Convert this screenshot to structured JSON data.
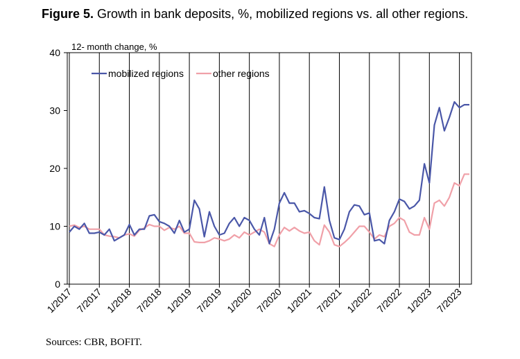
{
  "chart_data": {
    "type": "line",
    "figure_label": "Figure 5.",
    "title": "Growth in bank deposits, %, mobilized regions vs. all other regions.",
    "ylabel": "12- month change, %",
    "xlabel": "",
    "ylim": [
      0,
      40
    ],
    "yticks": [
      0,
      10,
      20,
      30,
      40
    ],
    "x_start": "1/2017",
    "n_months": 81,
    "xticks": [
      "1/2017",
      "7/2017",
      "1/2018",
      "7/2018",
      "1/2019",
      "7/2019",
      "1/2020",
      "7/2020",
      "1/2021",
      "7/2021",
      "1/2022",
      "7/2022",
      "1/2023",
      "7/2023"
    ],
    "legend_position": "top-left",
    "series": [
      {
        "name": "mobilized regions",
        "color": "#4a57a8",
        "values": [
          9.0,
          10.0,
          9.5,
          10.5,
          8.8,
          8.8,
          9.0,
          8.5,
          9.5,
          7.5,
          8.0,
          8.5,
          10.3,
          8.5,
          9.5,
          9.5,
          11.8,
          12.0,
          10.8,
          10.5,
          10.0,
          8.8,
          11.0,
          9.0,
          9.5,
          14.5,
          13.0,
          8.2,
          12.5,
          10.0,
          8.5,
          8.8,
          10.5,
          11.5,
          10.0,
          11.5,
          11.0,
          9.5,
          8.5,
          11.5,
          7.0,
          9.5,
          14.0,
          15.8,
          14.0,
          14.0,
          12.5,
          12.7,
          12.2,
          11.5,
          11.3,
          16.8,
          11.0,
          8.0,
          7.7,
          9.5,
          12.5,
          13.7,
          13.5,
          12.0,
          12.3,
          7.5,
          7.7,
          7.0,
          11.0,
          12.5,
          14.7,
          14.3,
          13.0,
          13.5,
          14.5,
          20.8,
          17.5,
          27.5,
          30.5,
          26.5,
          28.8,
          31.5,
          30.5,
          31.0,
          31.0
        ]
      },
      {
        "name": "other regions",
        "color": "#f0a0a8",
        "values": [
          10.0,
          10.2,
          9.8,
          10.0,
          9.5,
          9.5,
          9.5,
          8.5,
          8.3,
          8.2,
          8.0,
          8.5,
          8.7,
          8.3,
          9.3,
          9.7,
          10.3,
          10.0,
          10.0,
          9.3,
          9.8,
          9.5,
          10.0,
          8.8,
          8.8,
          7.3,
          7.2,
          7.2,
          7.5,
          8.0,
          7.8,
          7.5,
          7.8,
          8.5,
          8.0,
          9.0,
          8.5,
          9.0,
          9.5,
          9.0,
          7.0,
          6.5,
          8.5,
          9.8,
          9.2,
          9.8,
          9.2,
          8.8,
          9.0,
          7.5,
          6.8,
          10.2,
          9.0,
          6.8,
          6.5,
          7.2,
          8.0,
          9.0,
          10.0,
          10.0,
          9.0,
          7.8,
          8.5,
          8.2,
          10.0,
          10.5,
          11.5,
          11.0,
          9.0,
          8.5,
          8.5,
          11.5,
          9.5,
          14.0,
          14.5,
          13.5,
          15.0,
          17.5,
          17.0,
          19.0,
          19.0
        ]
      }
    ]
  },
  "footer": {
    "source": "Sources: CBR, BOFIT."
  }
}
